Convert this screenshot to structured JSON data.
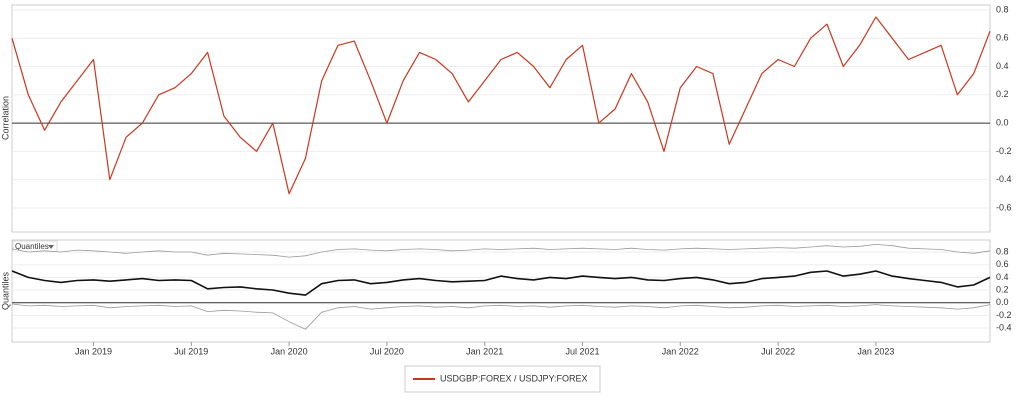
{
  "chart_data": [
    {
      "type": "line",
      "y_label": "Correlation",
      "x": [
        "2018-08",
        "2018-09",
        "2018-10",
        "2018-11",
        "2018-12",
        "2019-01",
        "2019-02",
        "2019-03",
        "2019-04",
        "2019-05",
        "2019-06",
        "2019-07",
        "2019-08",
        "2019-09",
        "2019-10",
        "2019-11",
        "2019-12",
        "2020-01",
        "2020-02",
        "2020-03",
        "2020-04",
        "2020-05",
        "2020-06",
        "2020-07",
        "2020-08",
        "2020-09",
        "2020-10",
        "2020-11",
        "2020-12",
        "2021-01",
        "2021-02",
        "2021-03",
        "2021-04",
        "2021-05",
        "2021-06",
        "2021-07",
        "2021-08",
        "2021-09",
        "2021-10",
        "2021-11",
        "2021-12",
        "2022-01",
        "2022-02",
        "2022-03",
        "2022-04",
        "2022-05",
        "2022-06",
        "2022-07",
        "2022-08",
        "2022-09",
        "2022-10",
        "2022-11",
        "2022-12",
        "2023-01",
        "2023-02",
        "2023-03",
        "2023-04",
        "2023-05",
        "2023-06",
        "2023-07",
        "2023-08"
      ],
      "series": [
        {
          "name": "USDGBP:FOREX / USDJPY:FOREX",
          "color": "#c8381e",
          "values": [
            0.6,
            0.2,
            -0.05,
            0.15,
            0.3,
            0.45,
            -0.4,
            -0.1,
            0.0,
            0.2,
            0.25,
            0.35,
            0.5,
            0.05,
            -0.1,
            -0.2,
            0.0,
            -0.5,
            -0.25,
            0.3,
            0.55,
            0.58,
            0.3,
            0.0,
            0.3,
            0.5,
            0.45,
            0.35,
            0.15,
            0.3,
            0.45,
            0.5,
            0.4,
            0.25,
            0.45,
            0.55,
            0.0,
            0.1,
            0.35,
            0.15,
            -0.2,
            0.25,
            0.4,
            0.35,
            -0.15,
            0.1,
            0.35,
            0.45,
            0.4,
            0.6,
            0.7,
            0.4,
            0.55,
            0.75,
            0.6,
            0.45,
            0.5,
            0.55,
            0.2,
            0.35,
            0.65
          ]
        }
      ],
      "xlim": [
        "2018-08",
        "2023-08"
      ],
      "ylim": [
        -0.77,
        0.835
      ],
      "yticks": [
        0.8,
        0.6,
        0.4,
        0.2,
        {
          "value": 0,
          "label": "0.0"
        },
        -0.2,
        -0.4,
        -0.6
      ],
      "grid": true
    },
    {
      "type": "line",
      "y_label": "Quantiles",
      "selector": "Quantiles",
      "x": [
        "2018-08",
        "2018-09",
        "2018-10",
        "2018-11",
        "2018-12",
        "2019-01",
        "2019-02",
        "2019-03",
        "2019-04",
        "2019-05",
        "2019-06",
        "2019-07",
        "2019-08",
        "2019-09",
        "2019-10",
        "2019-11",
        "2019-12",
        "2020-01",
        "2020-02",
        "2020-03",
        "2020-04",
        "2020-05",
        "2020-06",
        "2020-07",
        "2020-08",
        "2020-09",
        "2020-10",
        "2020-11",
        "2020-12",
        "2021-01",
        "2021-02",
        "2021-03",
        "2021-04",
        "2021-05",
        "2021-06",
        "2021-07",
        "2021-08",
        "2021-09",
        "2021-10",
        "2021-11",
        "2021-12",
        "2022-01",
        "2022-02",
        "2022-03",
        "2022-04",
        "2022-05",
        "2022-06",
        "2022-07",
        "2022-08",
        "2022-09",
        "2022-10",
        "2022-11",
        "2022-12",
        "2023-01",
        "2023-02",
        "2023-03",
        "2023-04",
        "2023-05",
        "2023-06",
        "2023-07",
        "2023-08"
      ],
      "series": [
        {
          "color": "#999999",
          "line_width": 0.8,
          "values": [
            0.85,
            0.8,
            0.82,
            0.8,
            0.83,
            0.82,
            0.8,
            0.78,
            0.8,
            0.82,
            0.8,
            0.8,
            0.75,
            0.78,
            0.77,
            0.76,
            0.75,
            0.72,
            0.74,
            0.8,
            0.84,
            0.85,
            0.83,
            0.82,
            0.84,
            0.85,
            0.84,
            0.82,
            0.83,
            0.85,
            0.84,
            0.85,
            0.86,
            0.84,
            0.85,
            0.86,
            0.85,
            0.84,
            0.86,
            0.84,
            0.83,
            0.85,
            0.86,
            0.85,
            0.84,
            0.85,
            0.86,
            0.87,
            0.86,
            0.88,
            0.9,
            0.88,
            0.89,
            0.92,
            0.9,
            0.86,
            0.85,
            0.84,
            0.8,
            0.78,
            0.82
          ]
        },
        {
          "color": "#111111",
          "line_width": 1.6,
          "values": [
            0.5,
            0.4,
            0.35,
            0.32,
            0.35,
            0.36,
            0.34,
            0.36,
            0.38,
            0.35,
            0.36,
            0.35,
            0.22,
            0.24,
            0.25,
            0.22,
            0.2,
            0.15,
            0.12,
            0.3,
            0.35,
            0.36,
            0.3,
            0.32,
            0.36,
            0.38,
            0.35,
            0.33,
            0.34,
            0.35,
            0.42,
            0.38,
            0.36,
            0.4,
            0.38,
            0.42,
            0.4,
            0.38,
            0.4,
            0.36,
            0.35,
            0.38,
            0.4,
            0.36,
            0.3,
            0.32,
            0.38,
            0.4,
            0.42,
            0.48,
            0.5,
            0.42,
            0.45,
            0.5,
            0.42,
            0.38,
            0.35,
            0.32,
            0.25,
            0.28,
            0.4
          ]
        },
        {
          "color": "#999999",
          "line_width": 0.8,
          "values": [
            -0.02,
            -0.05,
            -0.04,
            -0.06,
            -0.05,
            -0.04,
            -0.08,
            -0.06,
            -0.05,
            -0.04,
            -0.06,
            -0.05,
            -0.14,
            -0.12,
            -0.13,
            -0.15,
            -0.16,
            -0.3,
            -0.42,
            -0.15,
            -0.08,
            -0.06,
            -0.1,
            -0.08,
            -0.06,
            -0.05,
            -0.07,
            -0.06,
            -0.08,
            -0.05,
            -0.04,
            -0.06,
            -0.05,
            -0.07,
            -0.05,
            -0.04,
            -0.06,
            -0.07,
            -0.05,
            -0.06,
            -0.08,
            -0.05,
            -0.04,
            -0.06,
            -0.08,
            -0.07,
            -0.05,
            -0.04,
            -0.06,
            -0.05,
            -0.04,
            -0.06,
            -0.05,
            -0.03,
            -0.05,
            -0.06,
            -0.07,
            -0.08,
            -0.1,
            -0.08,
            -0.03
          ]
        }
      ],
      "xlim": [
        "2018-08",
        "2023-08"
      ],
      "ylim": [
        -0.62,
        0.99
      ],
      "yticks": [
        0.8,
        0.6,
        0.4,
        0.2,
        {
          "value": 0,
          "label": "0.0"
        },
        -0.2,
        -0.4
      ],
      "xticks": [
        {
          "value": "2019-01",
          "label": "Jan 2019"
        },
        {
          "value": "2019-07",
          "label": "Jul 2019"
        },
        {
          "value": "2020-01",
          "label": "Jan 2020"
        },
        {
          "value": "2020-07",
          "label": "Jul 2020"
        },
        {
          "value": "2021-01",
          "label": "Jan 2021"
        },
        {
          "value": "2021-07",
          "label": "Jul 2021"
        },
        {
          "value": "2022-01",
          "label": "Jan 2022"
        },
        {
          "value": "2022-07",
          "label": "Jul 2022"
        },
        {
          "value": "2023-01",
          "label": "Jan 2023"
        }
      ],
      "grid": true
    }
  ]
}
